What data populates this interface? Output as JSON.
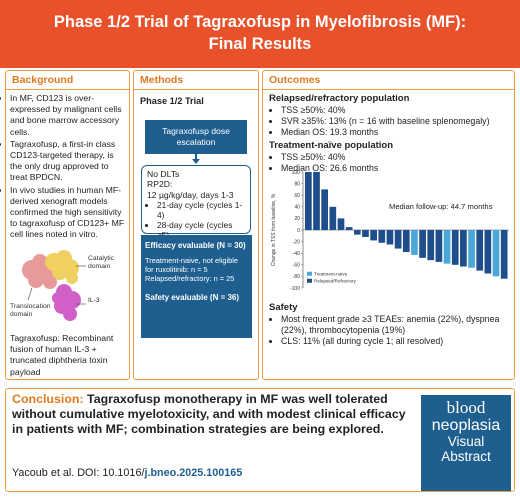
{
  "header": {
    "title_line1": "Phase 1/2 Trial of Tagraxofusp in Myelofibrosis (MF):",
    "title_line2": "Final Results"
  },
  "background": {
    "heading": "Background",
    "bullets": [
      "In MF, CD123 is over-expressed by malignant cells and bone marrow accessory cells.",
      "Tagraxofusp, a first-in class CD123-targeted therapy, is the only drug approved to treat BPDCN.",
      "In vivo studies in human MF-derived xenograft models confirmed the high sensitivity to tagraxofusp of CD123+ MF cell lines noted in vitro."
    ],
    "molecule_labels": {
      "catalytic": "Catalytic domain",
      "translocation": "Translocation domain",
      "il3": "IL-3"
    },
    "footnote": "Tagraxofusp: Recombinant fusion of human IL-3 + truncated diphtheria toxin payload"
  },
  "methods": {
    "heading": "Methods",
    "subheading": "Phase 1/2 Trial",
    "dose_box": "Tagraxofusp dose escalation",
    "rp2d_line1": "No DLTs",
    "rp2d_line2": "RP2D:",
    "rp2d_line3": "12 µg/kg/day, days 1-3",
    "rp2d_bullets": [
      "21-day cycle (cycles 1-4)",
      "28-day cycle (cycles ≥5)"
    ],
    "efficacy_title": "Efficacy evaluable (N = 30)",
    "efficacy_line1": "Treatment-naive, not eligible for ruxolitinib: n = 5",
    "efficacy_line2": "Relapsed/refractory: n = 25",
    "safety_title": "Safety evaluable (N = 36)"
  },
  "outcomes": {
    "heading": "Outcomes",
    "rr_heading": "Relapsed/refractory population",
    "rr_bullets": [
      "TSS ≥50%: 40%",
      "SVR ≥35%: 13% (n = 16 with baseline splenomegaly)",
      "Median OS: 19.3 months"
    ],
    "tn_heading": "Treatment-naïve population",
    "tn_bullets": [
      "TSS ≥50%: 40%",
      "Median OS: 26.6 months"
    ],
    "safety_heading": "Safety",
    "safety_bullets": [
      "Most frequent grade ≥3 TEAEs: anemia (22%), dyspnea (22%), thrombocytopenia (19%)",
      "CLS: 11% (all during cycle 1; all resolved)"
    ]
  },
  "chart_data": {
    "type": "bar",
    "ylabel": "Change in TSS from baseline, %",
    "yticks": [
      100,
      80,
      60,
      40,
      20,
      0,
      -20,
      -40,
      -60,
      -80,
      -100
    ],
    "ylim": [
      -100,
      100
    ],
    "annotation": "Median follow-up: 44.7 months",
    "legend": [
      "Treatment-naive",
      "Relapsed/Refractory"
    ],
    "legend_position": "bottom-left",
    "colors": {
      "Treatment-naive": "#4aa8d8",
      "Relapsed/Refractory": "#1f4e8c"
    },
    "values": [
      100,
      100,
      70,
      40,
      20,
      5,
      -8,
      -12,
      -18,
      -22,
      -25,
      -32,
      -38,
      -43,
      -48,
      -52,
      -55,
      -58,
      -60,
      -63,
      -65,
      -70,
      -75,
      -80,
      -84
    ],
    "groups": [
      "R",
      "R",
      "R",
      "R",
      "R",
      "R",
      "R",
      "R",
      "R",
      "R",
      "R",
      "R",
      "R",
      "N",
      "R",
      "R",
      "R",
      "N",
      "R",
      "R",
      "N",
      "R",
      "R",
      "N",
      "R"
    ]
  },
  "conclusion": {
    "label": "Conclusion:",
    "text": "Tagraxofusp monotherapy in MF was well tolerated without cumulative myelotoxicity, and with modest clinical efficacy in patients with MF; combination strategies are being explored.",
    "citation_prefix": "Yacoub et al. DOI: 10.1016/",
    "citation_doi": "j.bneo.2025.100165"
  },
  "logo": {
    "line1": "blood",
    "line2": "neoplasia",
    "line3": "Visual",
    "line4": "Abstract"
  }
}
